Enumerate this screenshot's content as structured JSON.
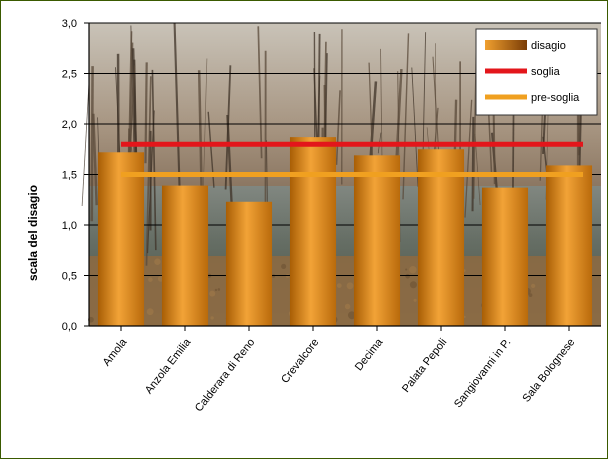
{
  "chart_data": {
    "type": "bar",
    "ylabel": "scala del disagio",
    "ylim": [
      0,
      3
    ],
    "yticks": [
      "0,0",
      "0,5",
      "1,0",
      "1,5",
      "2,0",
      "2,5",
      "3,0"
    ],
    "categories": [
      "Amola",
      "Anzola Emilia",
      "Calderara di Reno",
      "Crevalcore",
      "Decima",
      "Palata Pepoli",
      "Sangiovanni in P.",
      "Sala Bolognese"
    ],
    "series": [
      {
        "name": "disagio",
        "type": "bar",
        "color": "#d98a1a",
        "values": [
          1.72,
          1.39,
          1.23,
          1.87,
          1.69,
          1.75,
          1.37,
          1.59
        ]
      },
      {
        "name": "soglia",
        "type": "line",
        "color": "#e3161b",
        "value": 1.8
      },
      {
        "name": "pre-soglia",
        "type": "line",
        "color": "#f0a020",
        "value": 1.5
      }
    ],
    "legend_position": "top-right",
    "grid": true,
    "background": "photo of bare trees and a riverbank"
  }
}
